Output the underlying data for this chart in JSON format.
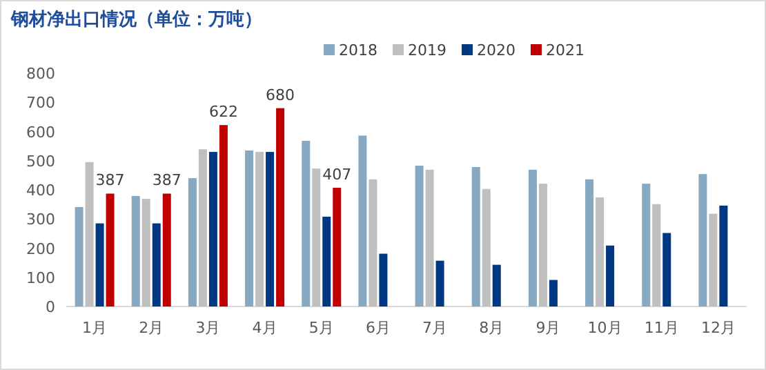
{
  "chart_data": {
    "type": "bar",
    "title": "钢材净出口情况（单位：万吨）",
    "categories": [
      "1月",
      "2月",
      "3月",
      "4月",
      "5月",
      "6月",
      "7月",
      "8月",
      "9月",
      "10月",
      "11月",
      "12月"
    ],
    "series": [
      {
        "name": "2018",
        "color": "#86a8c0",
        "values": [
          341,
          379,
          440,
          535,
          568,
          586,
          483,
          478,
          469,
          436,
          421,
          454
        ]
      },
      {
        "name": "2019",
        "color": "#bfbfbf",
        "values": [
          495,
          369,
          539,
          530,
          473,
          436,
          469,
          403,
          421,
          374,
          351,
          318
        ]
      },
      {
        "name": "2020",
        "color": "#003882",
        "values": [
          285,
          285,
          530,
          530,
          308,
          181,
          157,
          143,
          91,
          209,
          252,
          346
        ]
      },
      {
        "name": "2021",
        "color": "#c00000",
        "values": [
          387,
          387,
          622,
          680,
          407,
          null,
          null,
          null,
          null,
          null,
          null,
          null
        ],
        "value_labels": [
          "387",
          "387",
          "622",
          "680",
          "407",
          null,
          null,
          null,
          null,
          null,
          null,
          null
        ]
      }
    ],
    "ylim": [
      0,
      800
    ],
    "yticks": [
      0,
      100,
      200,
      300,
      400,
      500,
      600,
      700,
      800
    ],
    "legend": "top",
    "grid": false
  }
}
